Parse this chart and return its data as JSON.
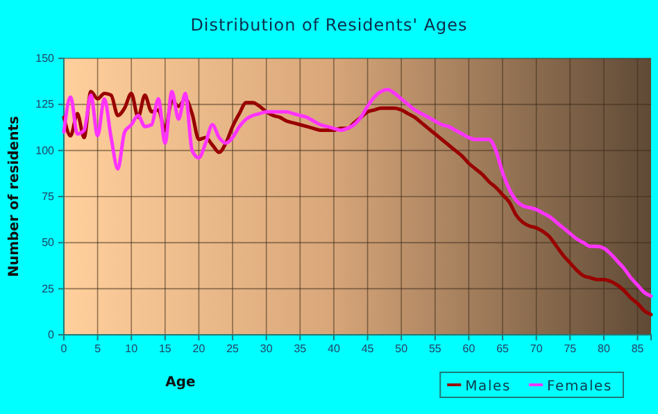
{
  "chart_data": {
    "type": "line",
    "title": "Distribution of Residents' Ages",
    "xlabel": "Age",
    "ylabel": "Number of residents",
    "x": [
      0,
      1,
      2,
      3,
      4,
      5,
      6,
      7,
      8,
      9,
      10,
      11,
      12,
      13,
      14,
      15,
      16,
      17,
      18,
      19,
      20,
      21,
      22,
      23,
      24,
      25,
      26,
      27,
      28,
      29,
      30,
      31,
      32,
      33,
      34,
      35,
      36,
      37,
      38,
      39,
      40,
      41,
      42,
      43,
      44,
      45,
      46,
      47,
      48,
      49,
      50,
      51,
      52,
      53,
      54,
      55,
      56,
      57,
      58,
      59,
      60,
      61,
      62,
      63,
      64,
      65,
      66,
      67,
      68,
      69,
      70,
      71,
      72,
      73,
      74,
      75,
      76,
      77,
      78,
      79,
      80,
      81,
      82,
      83,
      84,
      85,
      86,
      87
    ],
    "series": [
      {
        "name": "Males",
        "color": "#990000",
        "values": [
          118,
          108,
          120,
          107,
          132,
          128,
          131,
          130,
          119,
          123,
          131,
          118,
          130,
          121,
          122,
          111,
          127,
          124,
          128,
          120,
          106,
          107,
          103,
          99,
          104,
          113,
          120,
          126,
          126,
          124,
          121,
          119,
          118,
          116,
          115,
          114,
          113,
          112,
          111,
          111,
          111,
          112,
          112,
          115,
          118,
          121,
          122,
          123,
          123,
          123,
          122,
          120,
          118,
          115,
          112,
          109,
          106,
          103,
          100,
          97,
          93,
          90,
          87,
          83,
          80,
          76,
          72,
          65,
          61,
          59,
          58,
          56,
          53,
          48,
          43,
          39,
          35,
          32,
          31,
          30,
          30,
          29,
          27,
          24,
          20,
          17,
          13,
          11
        ]
      },
      {
        "name": "Females",
        "color": "#ff33ff",
        "values": [
          110,
          129,
          109,
          111,
          130,
          108,
          128,
          107,
          90,
          110,
          114,
          119,
          113,
          114,
          128,
          104,
          132,
          117,
          131,
          100,
          96,
          104,
          114,
          107,
          104,
          107,
          113,
          117,
          119,
          120,
          121,
          121,
          121,
          121,
          120,
          119,
          118,
          116,
          114,
          113,
          112,
          111,
          112,
          114,
          118,
          124,
          129,
          132,
          133,
          131,
          128,
          125,
          122,
          120,
          118,
          116,
          114,
          113,
          111,
          109,
          107,
          106,
          106,
          106,
          100,
          88,
          79,
          73,
          70,
          69,
          68,
          66,
          64,
          61,
          58,
          55,
          52,
          50,
          48,
          48,
          47,
          44,
          40,
          36,
          31,
          27,
          23,
          21
        ]
      }
    ],
    "xlim": [
      0,
      87
    ],
    "xticks": [
      0,
      5,
      10,
      15,
      20,
      25,
      30,
      35,
      40,
      45,
      50,
      55,
      60,
      65,
      70,
      75,
      80,
      85
    ],
    "ylim": [
      0,
      150
    ],
    "yticks": [
      0,
      25,
      50,
      75,
      100,
      125,
      150
    ],
    "grid": true,
    "legend": "bottom right",
    "marker": "none",
    "line_style": "solid"
  }
}
